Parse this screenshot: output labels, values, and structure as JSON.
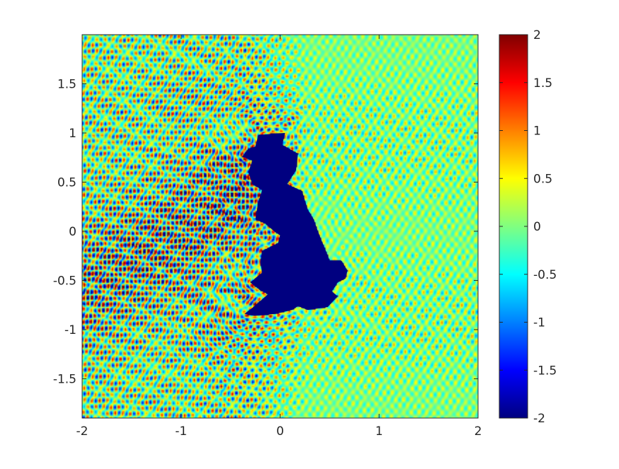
{
  "chart_data": {
    "type": "heatmap",
    "title": "",
    "xlabel": "",
    "ylabel": "",
    "xlim": [
      -2,
      2
    ],
    "ylim": [
      -1.9,
      2
    ],
    "x_ticks": [
      -2,
      -1,
      0,
      1,
      2
    ],
    "y_ticks": [
      -1.5,
      -1,
      -0.5,
      0,
      0.5,
      1,
      1.5
    ],
    "x_tick_labels": [
      "-2",
      "-1",
      "0",
      "1",
      "2"
    ],
    "y_tick_labels": [
      "-1.5",
      "-1",
      "-0.5",
      "0",
      "0.5",
      "1",
      "1.5"
    ],
    "colormap": "jet",
    "colorbar": {
      "range": [
        -2,
        2
      ],
      "ticks": [
        -2,
        -1.5,
        -1,
        -0.5,
        0,
        0.5,
        1,
        1.5,
        2
      ],
      "tick_labels": [
        "-2",
        "-1.5",
        "-1",
        "-0.5",
        "0",
        "0.5",
        "1",
        "1.5",
        "2"
      ],
      "placement": "right"
    },
    "field_description": "scattered wave field around an obstacle",
    "obstacle": {
      "value": -2,
      "outline": [
        [
          -0.22,
          0.98
        ],
        [
          0.05,
          1.0
        ],
        [
          0.02,
          0.88
        ],
        [
          0.18,
          0.79
        ],
        [
          0.16,
          0.62
        ],
        [
          0.07,
          0.48
        ],
        [
          0.22,
          0.41
        ],
        [
          0.28,
          0.22
        ],
        [
          0.34,
          0.12
        ],
        [
          0.37,
          0.03
        ],
        [
          0.42,
          -0.1
        ],
        [
          0.47,
          -0.22
        ],
        [
          0.5,
          -0.3
        ],
        [
          0.62,
          -0.3
        ],
        [
          0.68,
          -0.4
        ],
        [
          0.66,
          -0.48
        ],
        [
          0.58,
          -0.52
        ],
        [
          0.55,
          -0.57
        ],
        [
          0.52,
          -0.61
        ],
        [
          0.58,
          -0.66
        ],
        [
          0.48,
          -0.77
        ],
        [
          0.28,
          -0.8
        ],
        [
          0.18,
          -0.76
        ],
        [
          0.12,
          -0.8
        ],
        [
          -0.05,
          -0.84
        ],
        [
          -0.26,
          -0.86
        ],
        [
          -0.36,
          -0.84
        ],
        [
          -0.28,
          -0.78
        ],
        [
          -0.12,
          -0.64
        ],
        [
          -0.2,
          -0.6
        ],
        [
          -0.3,
          -0.52
        ],
        [
          -0.18,
          -0.42
        ],
        [
          -0.2,
          -0.32
        ],
        [
          -0.18,
          -0.2
        ],
        [
          -0.02,
          -0.12
        ],
        [
          0.0,
          -0.04
        ],
        [
          -0.06,
          0.0
        ],
        [
          -0.15,
          0.08
        ],
        [
          -0.25,
          0.12
        ],
        [
          -0.22,
          0.3
        ],
        [
          -0.18,
          0.42
        ],
        [
          -0.28,
          0.48
        ],
        [
          -0.32,
          0.6
        ],
        [
          -0.28,
          0.72
        ],
        [
          -0.38,
          0.76
        ],
        [
          -0.32,
          0.84
        ],
        [
          -0.25,
          0.86
        ]
      ]
    },
    "grid": false,
    "legend": "none"
  }
}
